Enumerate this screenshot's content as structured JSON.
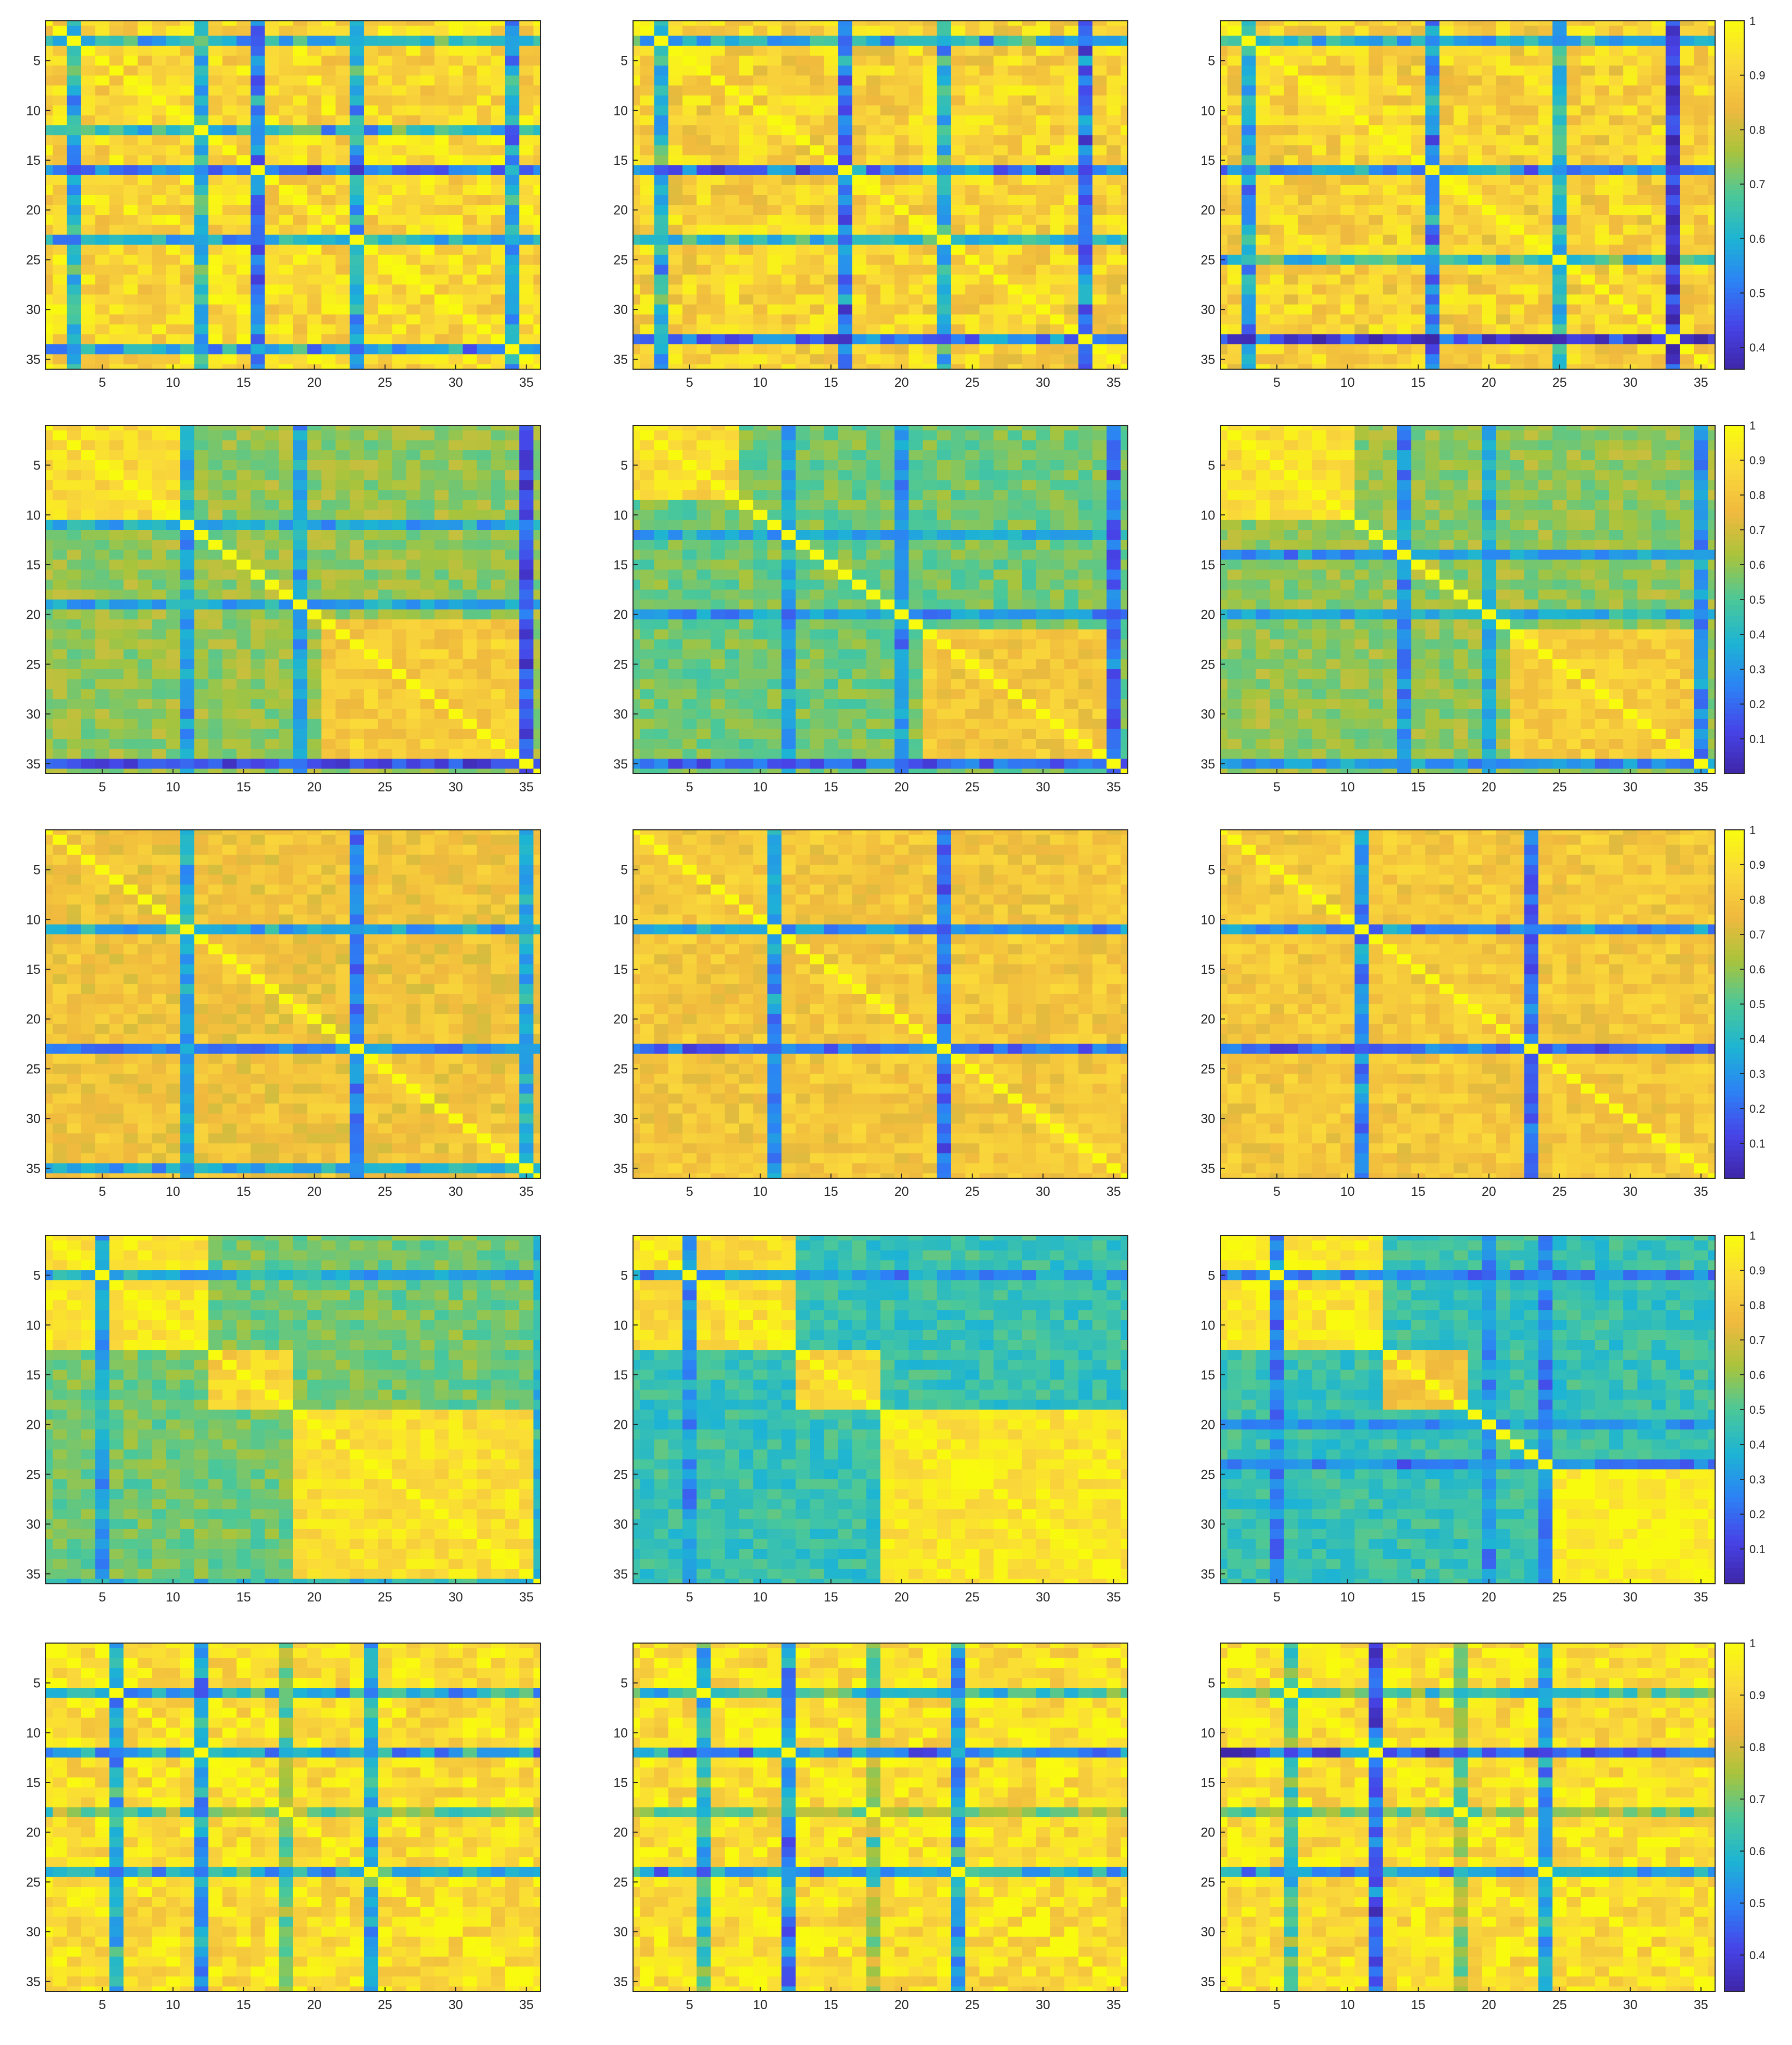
{
  "figure": {
    "rows": 5,
    "cols": 3,
    "colors": {
      "colormap": "parula",
      "colormap_stops": [
        "#3e26a8",
        "#4744e8",
        "#2c82f5",
        "#1db4d4",
        "#4bc899",
        "#a8c43c",
        "#f0b93e",
        "#fad93a",
        "#f9fb0e"
      ],
      "axes_text": "#262626",
      "background": "#ffffff"
    }
  },
  "chart_data": [
    {
      "type": "heatmap",
      "row": 1,
      "col": 1,
      "n": 36,
      "xticks": [
        5,
        10,
        15,
        20,
        25,
        30,
        35
      ],
      "yticks": [
        5,
        10,
        15,
        20,
        25,
        30,
        35
      ],
      "clim": [
        0.36,
        1.0
      ],
      "diagonal": 1.0,
      "base": 0.92,
      "low_rows": [
        {
          "idx": 3,
          "v": 0.62
        },
        {
          "idx": 12,
          "v": 0.62
        },
        {
          "idx": 16,
          "v": 0.52
        },
        {
          "idx": 23,
          "v": 0.6
        },
        {
          "idx": 34,
          "v": 0.56
        }
      ],
      "blocks": [],
      "colorbar": null
    },
    {
      "type": "heatmap",
      "row": 1,
      "col": 2,
      "n": 36,
      "xticks": [
        5,
        10,
        15,
        20,
        25,
        30,
        35
      ],
      "yticks": [
        5,
        10,
        15,
        20,
        25,
        30,
        35
      ],
      "clim": [
        0.36,
        1.0
      ],
      "diagonal": 1.0,
      "base": 0.9,
      "low_rows": [
        {
          "idx": 3,
          "v": 0.62
        },
        {
          "idx": 16,
          "v": 0.52
        },
        {
          "idx": 23,
          "v": 0.62
        },
        {
          "idx": 33,
          "v": 0.5
        }
      ],
      "blocks": [],
      "colorbar": null
    },
    {
      "type": "heatmap",
      "row": 1,
      "col": 3,
      "n": 36,
      "xticks": [
        5,
        10,
        15,
        20,
        25,
        30,
        35
      ],
      "yticks": [
        5,
        10,
        15,
        20,
        25,
        30,
        35
      ],
      "clim": [
        0.36,
        1.0
      ],
      "diagonal": 1.0,
      "base": 0.9,
      "low_rows": [
        {
          "idx": 3,
          "v": 0.6
        },
        {
          "idx": 16,
          "v": 0.55
        },
        {
          "idx": 25,
          "v": 0.62
        },
        {
          "idx": 33,
          "v": 0.42
        }
      ],
      "blocks": [],
      "colorbar": {
        "ticks": [
          0.4,
          0.5,
          0.6,
          0.7,
          0.8,
          0.9,
          1
        ]
      }
    },
    {
      "type": "heatmap",
      "row": 2,
      "col": 1,
      "n": 36,
      "xticks": [
        5,
        10,
        15,
        20,
        25,
        30,
        35
      ],
      "yticks": [
        5,
        10,
        15,
        20,
        25,
        30,
        35
      ],
      "clim": [
        0.0,
        1.0
      ],
      "diagonal": 1.0,
      "base": 0.6,
      "low_rows": [
        {
          "idx": 11,
          "v": 0.35
        },
        {
          "idx": 19,
          "v": 0.35
        },
        {
          "idx": 35,
          "v": 0.15
        }
      ],
      "blocks": [
        {
          "from": 1,
          "to": 10,
          "v": 0.88
        },
        {
          "from": 21,
          "to": 34,
          "v": 0.82
        }
      ],
      "colorbar": null
    },
    {
      "type": "heatmap",
      "row": 2,
      "col": 2,
      "n": 36,
      "xticks": [
        5,
        10,
        15,
        20,
        25,
        30,
        35
      ],
      "yticks": [
        5,
        10,
        15,
        20,
        25,
        30,
        35
      ],
      "clim": [
        0.0,
        1.0
      ],
      "diagonal": 1.0,
      "base": 0.55,
      "low_rows": [
        {
          "idx": 12,
          "v": 0.35
        },
        {
          "idx": 20,
          "v": 0.3
        },
        {
          "idx": 35,
          "v": 0.2
        }
      ],
      "blocks": [
        {
          "from": 1,
          "to": 8,
          "v": 0.88
        },
        {
          "from": 22,
          "to": 34,
          "v": 0.8
        }
      ],
      "colorbar": null
    },
    {
      "type": "heatmap",
      "row": 2,
      "col": 3,
      "n": 36,
      "xticks": [
        5,
        10,
        15,
        20,
        25,
        30,
        35
      ],
      "yticks": [
        5,
        10,
        15,
        20,
        25,
        30,
        35
      ],
      "clim": [
        0.0,
        1.0
      ],
      "diagonal": 1.0,
      "base": 0.6,
      "low_rows": [
        {
          "idx": 14,
          "v": 0.3
        },
        {
          "idx": 20,
          "v": 0.35
        },
        {
          "idx": 35,
          "v": 0.3
        }
      ],
      "blocks": [
        {
          "from": 1,
          "to": 10,
          "v": 0.9
        },
        {
          "from": 22,
          "to": 34,
          "v": 0.82
        }
      ],
      "colorbar": {
        "ticks": [
          0.1,
          0.2,
          0.3,
          0.4,
          0.5,
          0.6,
          0.7,
          0.8,
          0.9,
          1
        ]
      }
    },
    {
      "type": "heatmap",
      "row": 3,
      "col": 1,
      "n": 36,
      "xticks": [
        5,
        10,
        15,
        20,
        25,
        30,
        35
      ],
      "yticks": [
        5,
        10,
        15,
        20,
        25,
        30,
        35
      ],
      "clim": [
        0.0,
        1.0
      ],
      "diagonal": 1.0,
      "base": 0.78,
      "low_rows": [
        {
          "idx": 11,
          "v": 0.35
        },
        {
          "idx": 23,
          "v": 0.25
        },
        {
          "idx": 35,
          "v": 0.35
        }
      ],
      "blocks": [],
      "colorbar": null
    },
    {
      "type": "heatmap",
      "row": 3,
      "col": 2,
      "n": 36,
      "xticks": [
        5,
        10,
        15,
        20,
        25,
        30,
        35
      ],
      "yticks": [
        5,
        10,
        15,
        20,
        25,
        30,
        35
      ],
      "clim": [
        0.0,
        1.0
      ],
      "diagonal": 1.0,
      "base": 0.8,
      "low_rows": [
        {
          "idx": 11,
          "v": 0.3
        },
        {
          "idx": 23,
          "v": 0.22
        }
      ],
      "blocks": [],
      "colorbar": null
    },
    {
      "type": "heatmap",
      "row": 3,
      "col": 3,
      "n": 36,
      "xticks": [
        5,
        10,
        15,
        20,
        25,
        30,
        35
      ],
      "yticks": [
        5,
        10,
        15,
        20,
        25,
        30,
        35
      ],
      "clim": [
        0.0,
        1.0
      ],
      "diagonal": 1.0,
      "base": 0.8,
      "low_rows": [
        {
          "idx": 11,
          "v": 0.28
        },
        {
          "idx": 23,
          "v": 0.2
        }
      ],
      "blocks": [],
      "colorbar": {
        "ticks": [
          0.1,
          0.2,
          0.3,
          0.4,
          0.5,
          0.6,
          0.7,
          0.8,
          0.9,
          1
        ]
      }
    },
    {
      "type": "heatmap",
      "row": 4,
      "col": 1,
      "n": 36,
      "xticks": [
        5,
        10,
        15,
        20,
        25,
        30,
        35
      ],
      "yticks": [
        5,
        10,
        15,
        20,
        25,
        30,
        35
      ],
      "clim": [
        0.0,
        1.0
      ],
      "diagonal": 1.0,
      "base": 0.55,
      "low_rows": [
        {
          "idx": 5,
          "v": 0.35
        },
        {
          "idx": 36,
          "v": 0.4
        }
      ],
      "blocks": [
        {
          "from": 1,
          "to": 12,
          "v": 0.92
        },
        {
          "from": 13,
          "to": 18,
          "v": 0.85
        },
        {
          "from": 19,
          "to": 35,
          "v": 0.9
        }
      ],
      "colorbar": null
    },
    {
      "type": "heatmap",
      "row": 4,
      "col": 2,
      "n": 36,
      "xticks": [
        5,
        10,
        15,
        20,
        25,
        30,
        35
      ],
      "yticks": [
        5,
        10,
        15,
        20,
        25,
        30,
        35
      ],
      "clim": [
        0.0,
        1.0
      ],
      "diagonal": 1.0,
      "base": 0.45,
      "low_rows": [
        {
          "idx": 5,
          "v": 0.3
        }
      ],
      "blocks": [
        {
          "from": 1,
          "to": 12,
          "v": 0.9
        },
        {
          "from": 13,
          "to": 18,
          "v": 0.85
        },
        {
          "from": 19,
          "to": 36,
          "v": 0.92
        }
      ],
      "colorbar": null
    },
    {
      "type": "heatmap",
      "row": 4,
      "col": 3,
      "n": 36,
      "xticks": [
        5,
        10,
        15,
        20,
        25,
        30,
        35
      ],
      "yticks": [
        5,
        10,
        15,
        20,
        25,
        30,
        35
      ],
      "clim": [
        0.0,
        1.0
      ],
      "diagonal": 1.0,
      "base": 0.45,
      "low_rows": [
        {
          "idx": 5,
          "v": 0.25
        },
        {
          "idx": 20,
          "v": 0.3
        },
        {
          "idx": 24,
          "v": 0.25
        }
      ],
      "blocks": [
        {
          "from": 1,
          "to": 12,
          "v": 0.92
        },
        {
          "from": 13,
          "to": 18,
          "v": 0.82
        },
        {
          "from": 24,
          "to": 36,
          "v": 0.96
        }
      ],
      "colorbar": {
        "ticks": [
          0.1,
          0.2,
          0.3,
          0.4,
          0.5,
          0.6,
          0.7,
          0.8,
          0.9,
          1
        ]
      }
    },
    {
      "type": "heatmap",
      "row": 5,
      "col": 1,
      "n": 36,
      "xticks": [
        5,
        10,
        15,
        20,
        25,
        30,
        35
      ],
      "yticks": [
        5,
        10,
        15,
        20,
        25,
        30,
        35
      ],
      "clim": [
        0.33,
        1.0
      ],
      "diagonal": 1.0,
      "base": 0.93,
      "low_rows": [
        {
          "idx": 6,
          "v": 0.58
        },
        {
          "idx": 12,
          "v": 0.55
        },
        {
          "idx": 18,
          "v": 0.7
        },
        {
          "idx": 24,
          "v": 0.6
        }
      ],
      "blocks": [],
      "colorbar": null
    },
    {
      "type": "heatmap",
      "row": 5,
      "col": 2,
      "n": 36,
      "xticks": [
        5,
        10,
        15,
        20,
        25,
        30,
        35
      ],
      "yticks": [
        5,
        10,
        15,
        20,
        25,
        30,
        35
      ],
      "clim": [
        0.33,
        1.0
      ],
      "diagonal": 1.0,
      "base": 0.93,
      "low_rows": [
        {
          "idx": 6,
          "v": 0.62
        },
        {
          "idx": 12,
          "v": 0.52
        },
        {
          "idx": 18,
          "v": 0.72
        },
        {
          "idx": 24,
          "v": 0.55
        }
      ],
      "blocks": [],
      "colorbar": null
    },
    {
      "type": "heatmap",
      "row": 5,
      "col": 3,
      "n": 36,
      "xticks": [
        5,
        10,
        15,
        20,
        25,
        30,
        35
      ],
      "yticks": [
        5,
        10,
        15,
        20,
        25,
        30,
        35
      ],
      "clim": [
        0.33,
        1.0
      ],
      "diagonal": 1.0,
      "base": 0.93,
      "low_rows": [
        {
          "idx": 6,
          "v": 0.65
        },
        {
          "idx": 12,
          "v": 0.45
        },
        {
          "idx": 18,
          "v": 0.72
        },
        {
          "idx": 24,
          "v": 0.55
        }
      ],
      "blocks": [],
      "colorbar": {
        "ticks": [
          0.4,
          0.5,
          0.6,
          0.7,
          0.8,
          0.9,
          1
        ]
      }
    }
  ]
}
